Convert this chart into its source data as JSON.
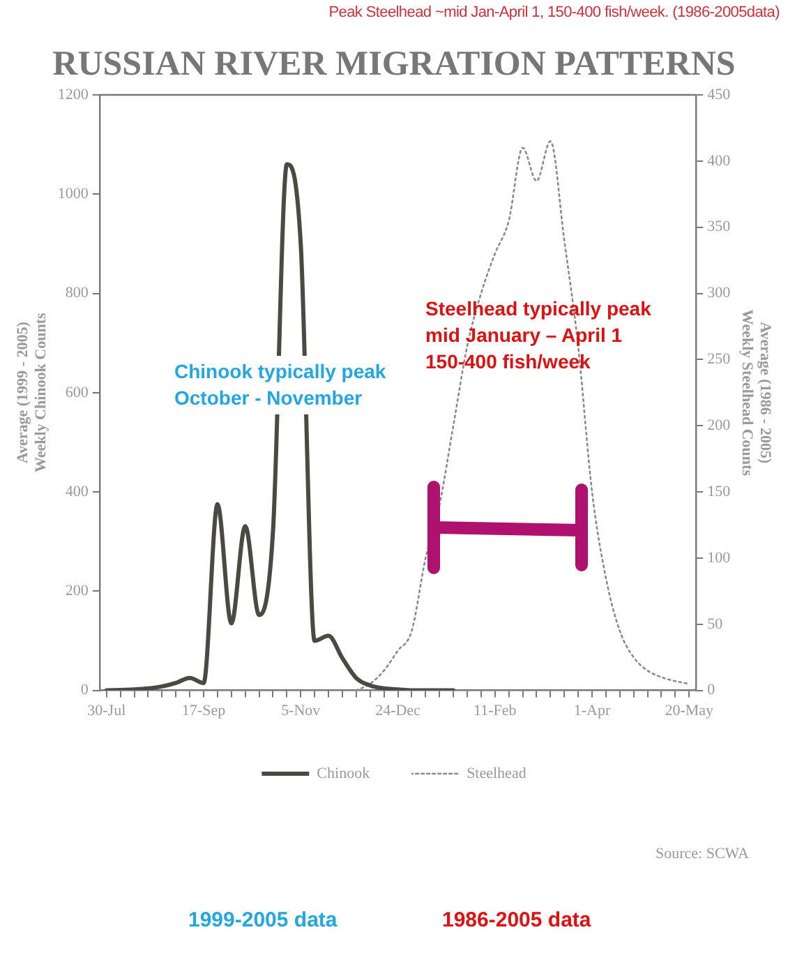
{
  "chart_data": {
    "type": "line",
    "title": "RUSSIAN RIVER MIGRATION PATTERNS",
    "ylabel": "Average (1999 - 2005)\nWeekly Chinook Counts",
    "y2label": "Average (1986 - 2005)\nWeekly Steelhead Counts",
    "categories": [
      "30-Jul",
      null,
      null,
      null,
      null,
      null,
      null,
      "17-Sep",
      null,
      null,
      null,
      null,
      null,
      null,
      "5-Nov",
      null,
      null,
      null,
      null,
      null,
      null,
      "24-Dec",
      null,
      null,
      null,
      null,
      null,
      null,
      "11-Feb",
      null,
      null,
      null,
      null,
      null,
      null,
      "1-Apr",
      null,
      null,
      null,
      null,
      null,
      null,
      "20-May"
    ],
    "ylim": [
      0,
      1200
    ],
    "yticks": [
      0,
      200,
      400,
      600,
      800,
      1000,
      1200
    ],
    "y2lim": [
      0,
      450
    ],
    "y2ticks": [
      0,
      50,
      100,
      150,
      200,
      250,
      300,
      350,
      400,
      450
    ],
    "series": [
      {
        "name": "Chinook",
        "color": "#4a4a42",
        "line_style": "solid",
        "values": [
          0,
          1,
          2,
          4,
          8,
          15,
          25,
          15,
          375,
          135,
          331,
          152,
          320,
          1060,
          900,
          100,
          110,
          65,
          25,
          10,
          4,
          2,
          0,
          0,
          0,
          0,
          null,
          null,
          null,
          null,
          null,
          null,
          null,
          null,
          null,
          null,
          null,
          null,
          null,
          null,
          null,
          null,
          null
        ]
      },
      {
        "name": "Steelhead",
        "color": "#8a8a8a",
        "line_style": "dotted",
        "axis": "y2",
        "values": [
          null,
          null,
          null,
          null,
          null,
          null,
          null,
          null,
          null,
          null,
          null,
          null,
          null,
          null,
          null,
          null,
          null,
          null,
          0,
          5,
          15,
          30,
          45,
          100,
          140,
          200,
          260,
          300,
          330,
          355,
          410,
          385,
          415,
          340,
          260,
          150,
          85,
          45,
          25,
          15,
          10,
          7,
          5
        ]
      }
    ],
    "marker": "none",
    "grid": false,
    "legend": "bottom",
    "annotations": [
      "Peak Steelhead ~mid Jan-April 1, 150-400 fish/week. (1986-2005data)",
      "Chinook typically peak\nOctober - November",
      "Steelhead typically peak\nmid January – April 1\n150-400 fish/week",
      "Source: SCWA",
      "1999-2005 data",
      "1986-2005 data"
    ]
  }
}
